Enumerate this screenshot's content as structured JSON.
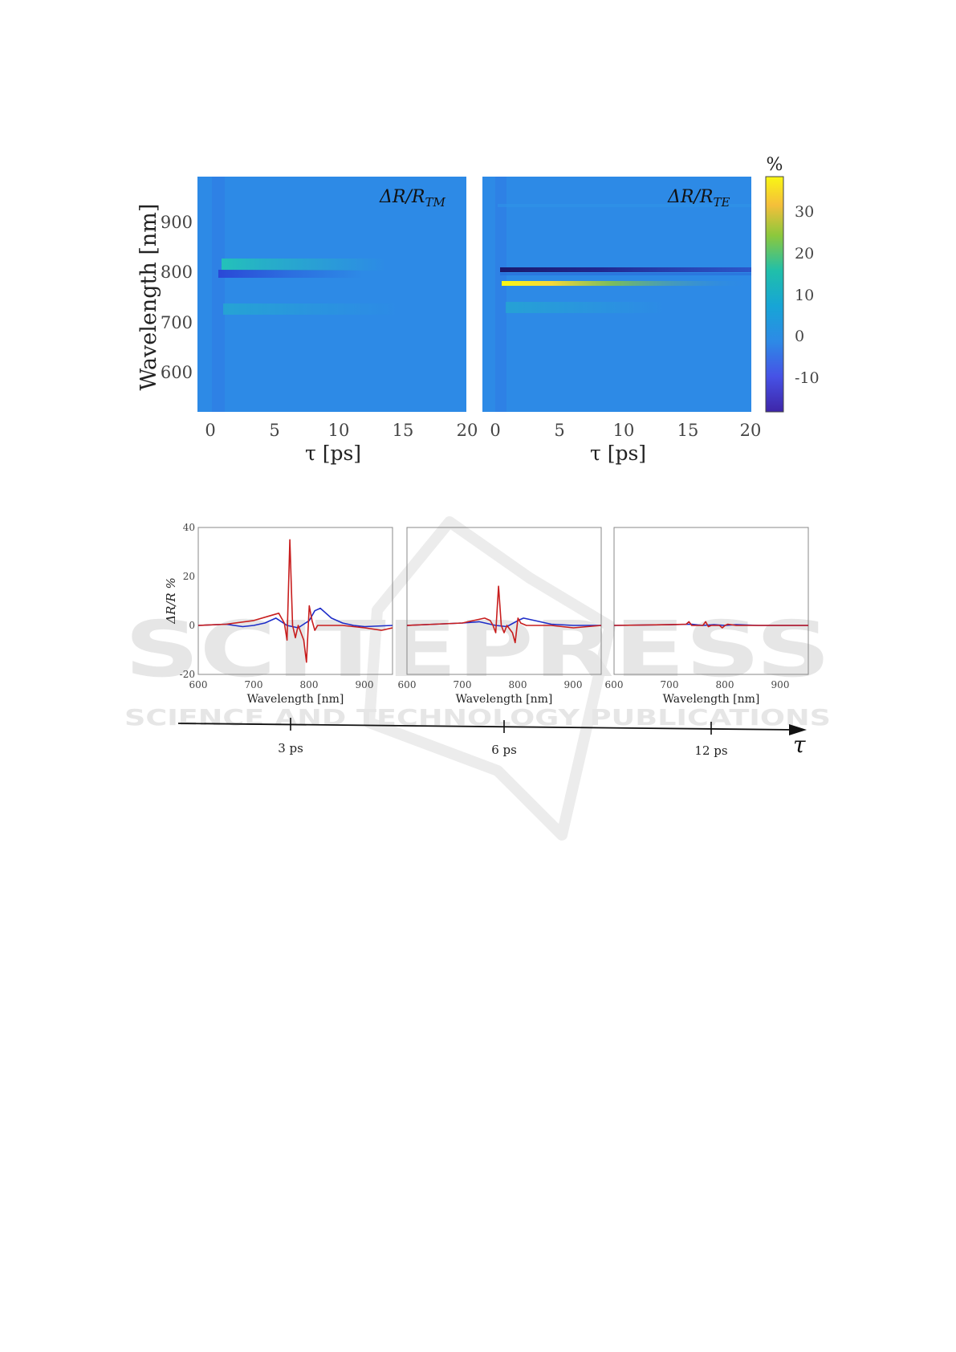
{
  "colors": {
    "heat_bg": "#2D8AE6",
    "blue_series": "#1E2DC8",
    "red_series": "#C81E1E",
    "watermark": "#E6E6E6"
  },
  "heatmaps": {
    "ylabel": "Wavelength [nm]",
    "xlabel": "τ [ps]",
    "yticks": [
      "600",
      "700",
      "800",
      "900"
    ],
    "xticks": [
      "0",
      "5",
      "10",
      "15",
      "20"
    ],
    "panels": [
      {
        "label": "ΔR/R",
        "sub": "TM"
      },
      {
        "label": "ΔR/R",
        "sub": "TE"
      }
    ],
    "colorbar": {
      "unit": "%",
      "ticks": [
        "-10",
        "0",
        "10",
        "20",
        "30"
      ]
    }
  },
  "spectra": {
    "ylabel": "ΔR/R %",
    "xlabel": "Wavelength [nm]",
    "yticks": [
      "-20",
      "0",
      "20",
      "40"
    ],
    "xticks": [
      "600",
      "700",
      "800",
      "900"
    ]
  },
  "timeline": {
    "ticks": [
      "3 ps",
      "6 ps",
      "12 ps"
    ],
    "symbol": "τ"
  },
  "watermark": {
    "line1": "SCITEPRESS",
    "line2": "SCIENCE AND TECHNOLOGY PUBLICATIONS"
  },
  "chart_data": [
    {
      "type": "heatmap",
      "xlabel": "τ [ps]",
      "ylabel": "Wavelength [nm]",
      "xlim": [
        -1,
        20
      ],
      "ylim": [
        520,
        990
      ],
      "colorbar_range": [
        -18,
        38
      ],
      "colorbar_unit": "%",
      "annotation": "ΔR/R_TM",
      "features": [
        {
          "wavelength": 815,
          "value": 8,
          "tau_start": 1,
          "tau_decay": 5
        },
        {
          "wavelength": 800,
          "value": -6,
          "tau_start": 0.8,
          "tau_decay": 4
        },
        {
          "wavelength": 725,
          "value": 4,
          "tau_start": 1,
          "tau_decay": 6
        }
      ]
    },
    {
      "type": "heatmap",
      "xlabel": "τ [ps]",
      "ylabel": "Wavelength [nm]",
      "xlim": [
        -1,
        20
      ],
      "ylim": [
        520,
        990
      ],
      "colorbar_range": [
        -18,
        38
      ],
      "colorbar_unit": "%",
      "annotation": "ΔR/R_TE",
      "features": [
        {
          "wavelength": 800,
          "value": -18,
          "tau_start": 0.5,
          "tau_decay": 30
        },
        {
          "wavelength": 770,
          "value": 36,
          "tau_start": 0.5,
          "tau_decay": 5
        },
        {
          "wavelength": 730,
          "value": 4,
          "tau_start": 1,
          "tau_decay": 6
        },
        {
          "wavelength": 810,
          "value": -4,
          "tau_start": 0.5,
          "tau_decay": 40
        }
      ]
    },
    {
      "type": "line",
      "time": "3 ps",
      "xlabel": "Wavelength [nm]",
      "ylabel": "ΔR/R %",
      "xlim": [
        600,
        950
      ],
      "ylim": [
        -20,
        40
      ],
      "series": [
        {
          "x": [
            600,
            650,
            680,
            700,
            720,
            740,
            760,
            780,
            800,
            810,
            820,
            840,
            860,
            880,
            900,
            950
          ],
          "y": [
            0,
            0.5,
            -0.5,
            0,
            1,
            3,
            0,
            -1,
            2,
            6,
            7,
            3,
            1,
            0,
            -0.5,
            0
          ]
        },
        {
          "x": [
            600,
            650,
            700,
            730,
            745,
            750,
            755,
            760,
            765,
            770,
            775,
            780,
            790,
            795,
            800,
            805,
            810,
            815,
            820,
            830,
            860,
            900,
            930,
            950
          ],
          "y": [
            0,
            0.5,
            2,
            4,
            5,
            3,
            1,
            -6,
            35,
            0,
            -5,
            0,
            -6,
            -15,
            8,
            2,
            -2,
            0,
            0,
            0,
            0,
            -1,
            -2,
            -1
          ]
        }
      ]
    },
    {
      "type": "line",
      "time": "6 ps",
      "xlabel": "Wavelength [nm]",
      "ylabel": "ΔR/R %",
      "xlim": [
        600,
        950
      ],
      "ylim": [
        -20,
        40
      ],
      "series": [
        {
          "x": [
            600,
            650,
            700,
            730,
            760,
            780,
            800,
            810,
            830,
            860,
            900,
            950
          ],
          "y": [
            0,
            0.5,
            1,
            1.5,
            0,
            -0.5,
            2,
            3,
            2,
            0.5,
            0,
            0
          ]
        },
        {
          "x": [
            600,
            650,
            700,
            720,
            740,
            750,
            755,
            760,
            765,
            770,
            775,
            780,
            790,
            795,
            800,
            805,
            815,
            830,
            860,
            900,
            950
          ],
          "y": [
            0,
            0.5,
            1,
            2,
            3,
            2,
            0,
            -3,
            16,
            0,
            -3,
            0,
            -3,
            -7,
            3,
            1,
            0,
            0,
            0,
            -1,
            0
          ]
        }
      ]
    },
    {
      "type": "line",
      "time": "12 ps",
      "xlabel": "Wavelength [nm]",
      "ylabel": "ΔR/R %",
      "xlim": [
        600,
        950
      ],
      "ylim": [
        -20,
        40
      ],
      "series": [
        {
          "x": [
            600,
            700,
            740,
            760,
            780,
            800,
            820,
            860,
            900,
            950
          ],
          "y": [
            0,
            0.3,
            0.5,
            0,
            0.3,
            0,
            0.3,
            0,
            0,
            0
          ]
        },
        {
          "x": [
            600,
            700,
            730,
            735,
            740,
            760,
            765,
            770,
            775,
            790,
            795,
            800,
            805,
            820,
            860,
            900,
            950
          ],
          "y": [
            0,
            0.3,
            0.5,
            1.5,
            0,
            0,
            1.5,
            -0.5,
            0,
            0,
            -1,
            0,
            0.5,
            0,
            0,
            0,
            0
          ]
        }
      ]
    }
  ]
}
